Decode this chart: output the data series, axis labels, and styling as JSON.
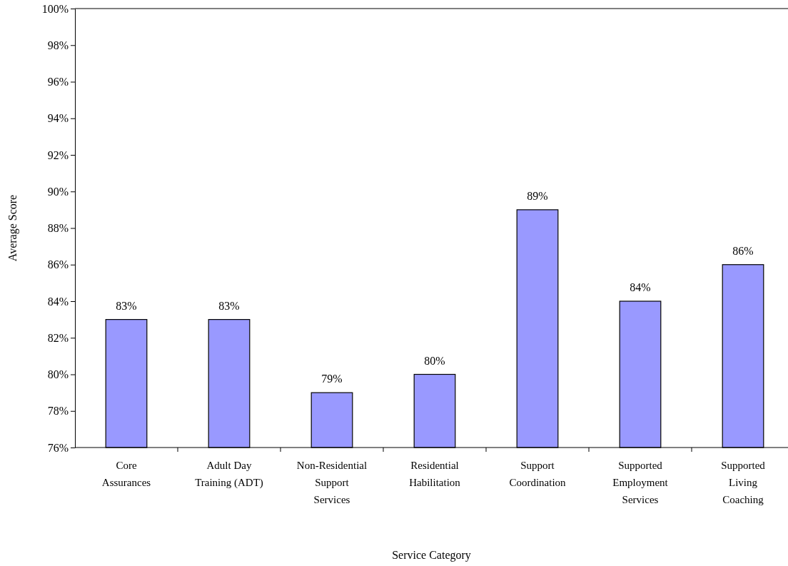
{
  "chart_data": {
    "type": "bar",
    "xlabel": "Service Category",
    "ylabel": "Average Score",
    "categories": [
      "Core Assurances",
      "Adult Day Training (ADT)",
      "Non-Residential Support Services",
      "Residential Habilitation",
      "Support Coordination",
      "Supported Employment Services",
      "Supported Living Coaching"
    ],
    "values": [
      83,
      83,
      79,
      80,
      89,
      84,
      86
    ],
    "value_labels": [
      "83%",
      "83%",
      "79%",
      "80%",
      "89%",
      "84%",
      "86%"
    ],
    "color": "#9999ff",
    "ylim": [
      76,
      100
    ],
    "yticks": [
      {
        "value": 76,
        "label": "76%"
      },
      {
        "value": 78,
        "label": "78%"
      },
      {
        "value": 80,
        "label": "80%"
      },
      {
        "value": 82,
        "label": "82%"
      },
      {
        "value": 84,
        "label": "84%"
      },
      {
        "value": 86,
        "label": "86%"
      },
      {
        "value": 88,
        "label": "88%"
      },
      {
        "value": 90,
        "label": "90%"
      },
      {
        "value": 92,
        "label": "92%"
      },
      {
        "value": 94,
        "label": "94%"
      },
      {
        "value": 96,
        "label": "96%"
      },
      {
        "value": 98,
        "label": "98%"
      },
      {
        "value": 100,
        "label": "100%"
      }
    ],
    "grid": false
  }
}
